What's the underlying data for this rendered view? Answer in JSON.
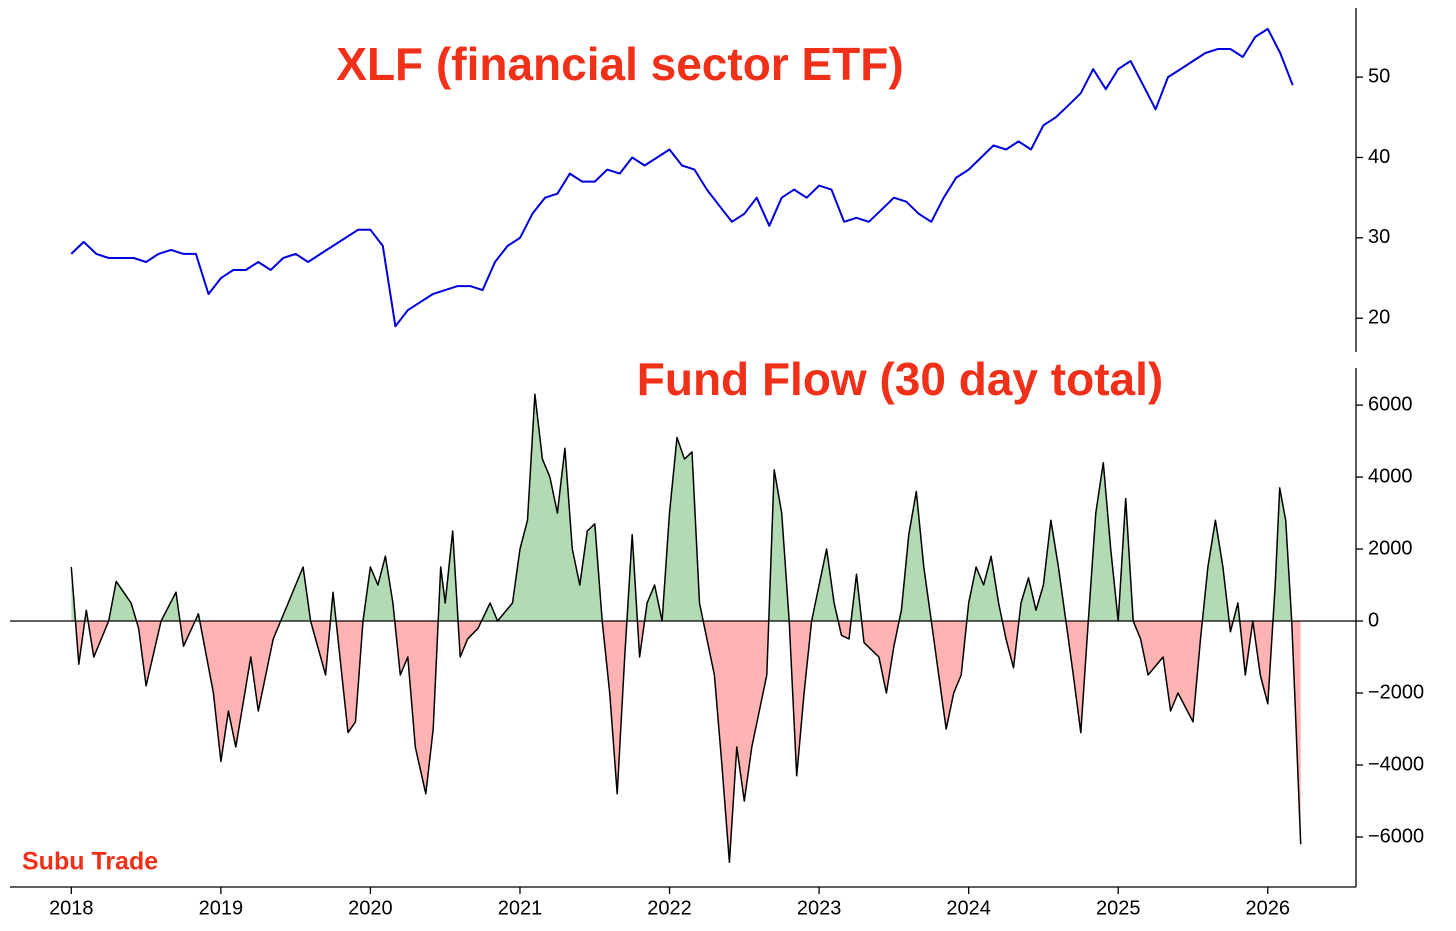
{
  "annotation": "Subu Trade",
  "chart_data": [
    {
      "type": "line",
      "title": "XLF (financial sector ETF)",
      "xlim": [
        2017.59,
        2026.59
      ],
      "ylim": [
        15.8,
        58.6
      ],
      "yticks": [
        20,
        30,
        40,
        50
      ],
      "x": [
        2018,
        2018.083,
        2018.167,
        2018.25,
        2018.333,
        2018.417,
        2018.5,
        2018.583,
        2018.667,
        2018.75,
        2018.833,
        2018.917,
        2019,
        2019.083,
        2019.167,
        2019.25,
        2019.333,
        2019.417,
        2019.5,
        2019.583,
        2019.667,
        2019.75,
        2019.833,
        2019.917,
        2020,
        2020.083,
        2020.167,
        2020.25,
        2020.333,
        2020.417,
        2020.5,
        2020.583,
        2020.667,
        2020.75,
        2020.833,
        2020.917,
        2021,
        2021.083,
        2021.167,
        2021.25,
        2021.333,
        2021.417,
        2021.5,
        2021.583,
        2021.667,
        2021.75,
        2021.833,
        2021.917,
        2022,
        2022.083,
        2022.167,
        2022.25,
        2022.333,
        2022.417,
        2022.5,
        2022.583,
        2022.667,
        2022.75,
        2022.833,
        2022.917,
        2023,
        2023.083,
        2023.167,
        2023.25,
        2023.333,
        2023.417,
        2023.5,
        2023.583,
        2023.667,
        2023.75,
        2023.833,
        2023.917,
        2024,
        2024.083,
        2024.167,
        2024.25,
        2024.333,
        2024.417,
        2024.5,
        2024.583,
        2024.667,
        2024.75,
        2024.833,
        2024.917,
        2025,
        2025.083,
        2025.167,
        2025.25,
        2025.333,
        2025.417,
        2025.5,
        2025.583,
        2025.667,
        2025.75,
        2025.833,
        2025.917,
        2026,
        2026.083,
        2026.167
      ],
      "series": [
        {
          "color": "#0000dd",
          "values": [
            28,
            29.5,
            28,
            27.5,
            27.5,
            27.5,
            27,
            28,
            28.5,
            28,
            28,
            23,
            25,
            26,
            26,
            27,
            26,
            27.5,
            28,
            27,
            28,
            29,
            30,
            31,
            31,
            29,
            19,
            21,
            22,
            23,
            23.5,
            24,
            24,
            23.5,
            27,
            29,
            30,
            33,
            35,
            35.5,
            38,
            37,
            37,
            38.5,
            38,
            40,
            39,
            40,
            41,
            39,
            38.5,
            36,
            34,
            32,
            33,
            35,
            31.5,
            35,
            36,
            35,
            36.5,
            36,
            32,
            32.5,
            32,
            33.5,
            35,
            34.5,
            33,
            32,
            35,
            37.5,
            38.5,
            40,
            41.5,
            41,
            42,
            41,
            44,
            45,
            46.5,
            48,
            51,
            48.5,
            51,
            52,
            49,
            46,
            50,
            51,
            52,
            53,
            53.5,
            53.5,
            52.5,
            55,
            56,
            53,
            49
          ]
        }
      ]
    },
    {
      "type": "area",
      "title": "Fund Flow (30 day total)",
      "xlim": [
        2017.59,
        2026.59
      ],
      "xticks": [
        2018,
        2019,
        2020,
        2021,
        2022,
        2023,
        2024,
        2025,
        2026
      ],
      "ylim": [
        -7390,
        7030
      ],
      "yticks": [
        {
          "value": -6000,
          "label": "−6000"
        },
        {
          "value": -4000,
          "label": "−4000"
        },
        {
          "value": -2000,
          "label": "−2000"
        },
        0,
        2000,
        4000,
        6000
      ],
      "hline": 0,
      "fill_positive": "#b3dbb3",
      "fill_negative": "#ffb3b3",
      "x": [
        2018.0,
        2018.05,
        2018.1,
        2018.15,
        2018.25,
        2018.3,
        2018.4,
        2018.45,
        2018.5,
        2018.6,
        2018.7,
        2018.75,
        2018.85,
        2018.95,
        2019.0,
        2019.05,
        2019.1,
        2019.2,
        2019.25,
        2019.35,
        2019.45,
        2019.55,
        2019.6,
        2019.7,
        2019.75,
        2019.85,
        2019.9,
        2019.95,
        2020.0,
        2020.05,
        2020.1,
        2020.15,
        2020.2,
        2020.25,
        2020.3,
        2020.37,
        2020.42,
        2020.47,
        2020.5,
        2020.55,
        2020.6,
        2020.65,
        2020.72,
        2020.8,
        2020.85,
        2020.95,
        2021.0,
        2021.05,
        2021.1,
        2021.15,
        2021.2,
        2021.25,
        2021.3,
        2021.35,
        2021.4,
        2021.45,
        2021.5,
        2021.55,
        2021.6,
        2021.65,
        2021.7,
        2021.75,
        2021.8,
        2021.85,
        2021.9,
        2021.95,
        2022.0,
        2022.05,
        2022.1,
        2022.15,
        2022.2,
        2022.25,
        2022.3,
        2022.35,
        2022.4,
        2022.45,
        2022.5,
        2022.55,
        2022.6,
        2022.65,
        2022.7,
        2022.75,
        2022.8,
        2022.85,
        2022.9,
        2022.95,
        2023.05,
        2023.1,
        2023.15,
        2023.2,
        2023.25,
        2023.3,
        2023.4,
        2023.45,
        2023.5,
        2023.55,
        2023.6,
        2023.65,
        2023.7,
        2023.75,
        2023.8,
        2023.85,
        2023.9,
        2023.95,
        2024.0,
        2024.05,
        2024.1,
        2024.15,
        2024.2,
        2024.25,
        2024.3,
        2024.35,
        2024.4,
        2024.45,
        2024.5,
        2024.55,
        2024.6,
        2024.65,
        2024.7,
        2024.75,
        2024.8,
        2024.85,
        2024.9,
        2024.95,
        2025.0,
        2025.05,
        2025.1,
        2025.15,
        2025.2,
        2025.3,
        2025.35,
        2025.4,
        2025.5,
        2025.55,
        2025.6,
        2025.65,
        2025.7,
        2025.75,
        2025.8,
        2025.85,
        2025.9,
        2025.95,
        2026.0,
        2026.05,
        2026.08,
        2026.12,
        2026.16,
        2026.18,
        2026.22
      ],
      "series": [
        {
          "color": "#000000",
          "values": [
            1500,
            -1200,
            300,
            -1000,
            0,
            1100,
            500,
            -200,
            -1800,
            0,
            800,
            -700,
            200,
            -2000,
            -3900,
            -2500,
            -3500,
            -1000,
            -2500,
            -500,
            500,
            1500,
            0,
            -1500,
            800,
            -3100,
            -2800,
            0,
            1500,
            1000,
            1800,
            500,
            -1500,
            -1000,
            -3500,
            -4800,
            -3000,
            1500,
            500,
            2500,
            -1000,
            -500,
            -200,
            500,
            0,
            500,
            2000,
            2800,
            6300,
            4500,
            4000,
            3000,
            4800,
            2000,
            1000,
            2500,
            2700,
            0,
            -2000,
            -4800,
            -1000,
            2400,
            -1000,
            500,
            1000,
            0,
            3000,
            5100,
            4500,
            4700,
            500,
            -500,
            -1500,
            -4000,
            -6700,
            -3500,
            -5000,
            -3500,
            -2500,
            -1500,
            4200,
            3000,
            0,
            -4300,
            -2000,
            0,
            2000,
            500,
            -400,
            -500,
            1300,
            -600,
            -1000,
            -2000,
            -700,
            300,
            2400,
            3600,
            1500,
            0,
            -1500,
            -3000,
            -2000,
            -1500,
            500,
            1500,
            1000,
            1800,
            500,
            -500,
            -1300,
            500,
            1200,
            300,
            1000,
            2800,
            1500,
            0,
            -1500,
            -3100,
            0,
            3000,
            4400,
            2000,
            0,
            3400,
            0,
            -500,
            -1500,
            -1000,
            -2500,
            -2000,
            -2800,
            -500,
            1500,
            2800,
            1500,
            -300,
            500,
            -1500,
            0,
            -1500,
            -2300,
            1000,
            3700,
            2800,
            0,
            -2000,
            -6200
          ]
        }
      ]
    }
  ]
}
